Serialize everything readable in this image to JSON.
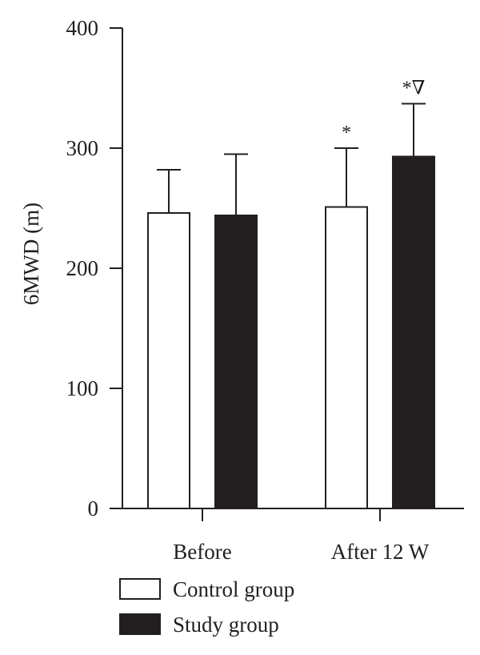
{
  "chart_data": {
    "type": "bar",
    "title": "",
    "xlabel": "",
    "ylabel": "6MWD (m)",
    "ylim": [
      0,
      400
    ],
    "yticks": [
      0,
      100,
      200,
      300,
      400
    ],
    "categories": [
      "Before",
      "After 12 W"
    ],
    "series": [
      {
        "name": "Control group",
        "color": "#ffffff",
        "values": [
          246,
          251
        ],
        "error": [
          36,
          49
        ],
        "annotations": [
          "",
          "*"
        ]
      },
      {
        "name": "Study group",
        "color": "#231f20",
        "values": [
          244,
          293
        ],
        "error": [
          51,
          44
        ],
        "annotations": [
          "",
          "*∇"
        ]
      }
    ],
    "grid": false,
    "legend_position": "bottom-left"
  }
}
